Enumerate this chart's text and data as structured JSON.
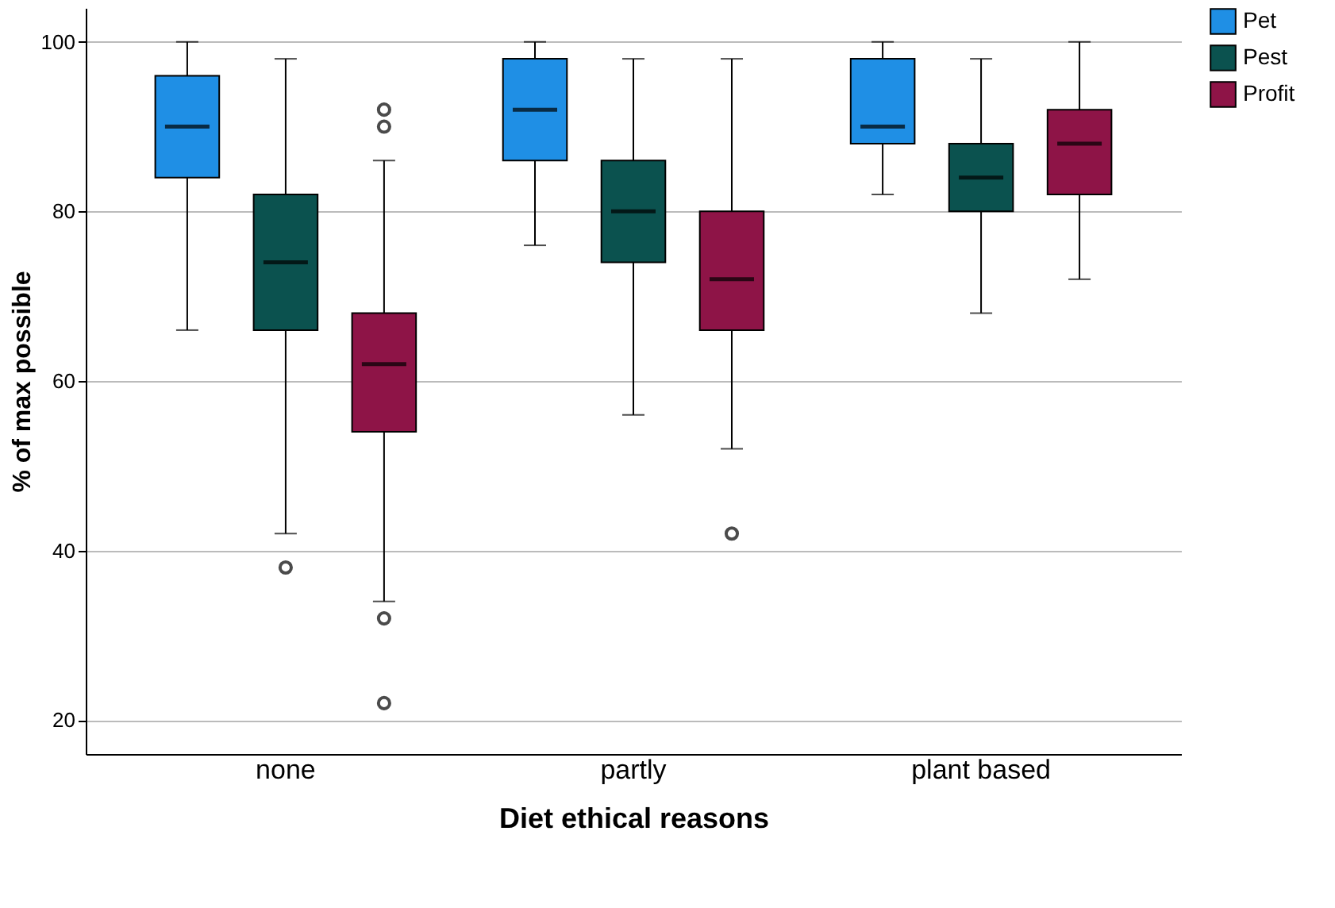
{
  "chart_data": {
    "type": "box",
    "xlabel": "Diet ethical reasons",
    "ylabel": "% of max possible",
    "categories": [
      "none",
      "partly",
      "plant based"
    ],
    "ylim": [
      16,
      104
    ],
    "yticks": [
      20,
      40,
      60,
      80,
      100
    ],
    "grid": "y",
    "legend": "top right",
    "series": [
      {
        "name": "Pet",
        "color": "#1f8fe5",
        "boxes": [
          {
            "low": 66,
            "q1": 84,
            "median": 90,
            "q3": 96,
            "high": 100
          },
          {
            "low": 76,
            "q1": 86,
            "median": 92,
            "q3": 98,
            "high": 100
          },
          {
            "low": 82,
            "q1": 88,
            "median": 90,
            "q3": 98,
            "high": 100
          }
        ]
      },
      {
        "name": "Pest",
        "color": "#0b524f",
        "boxes": [
          {
            "low": 42,
            "q1": 66,
            "median": 74,
            "q3": 82,
            "high": 98,
            "outliers": [
              38
            ]
          },
          {
            "low": 56,
            "q1": 74,
            "median": 80,
            "q3": 86,
            "high": 98
          },
          {
            "low": 68,
            "q1": 80,
            "median": 84,
            "q3": 88,
            "high": 98
          }
        ]
      },
      {
        "name": "Profit",
        "color": "#8e1447",
        "boxes": [
          {
            "low": 34,
            "q1": 54,
            "median": 62,
            "q3": 68,
            "high": 86,
            "outliers": [
              92,
              90,
              32,
              22
            ]
          },
          {
            "low": 52,
            "q1": 66,
            "median": 72,
            "q3": 80,
            "high": 98,
            "outliers": [
              42
            ]
          },
          {
            "low": 72,
            "q1": 82,
            "median": 88,
            "q3": 92,
            "high": 100
          }
        ]
      }
    ]
  }
}
